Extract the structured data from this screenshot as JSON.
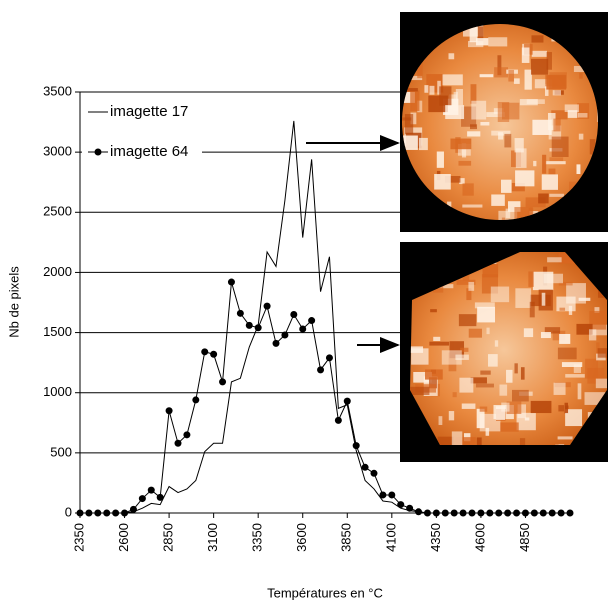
{
  "chart_data": {
    "type": "line",
    "x_label": "Températures en °C",
    "y_label": "Nb de pixels",
    "x": [
      2350,
      2400,
      2450,
      2500,
      2550,
      2600,
      2650,
      2700,
      2750,
      2800,
      2850,
      2900,
      2950,
      3000,
      3050,
      3100,
      3150,
      3200,
      3250,
      3300,
      3350,
      3400,
      3450,
      3500,
      3550,
      3600,
      3650,
      3700,
      3750,
      3800,
      3850,
      3900,
      3950,
      4000,
      4050,
      4100,
      4150,
      4200,
      4250,
      4300,
      4350,
      4400,
      4450,
      4500,
      4550,
      4600,
      4650,
      4700,
      4750,
      4800,
      4850,
      4900,
      4950,
      5000,
      5050,
      5100
    ],
    "series": [
      {
        "name": "imagette 17",
        "color": "#000000",
        "marker": false,
        "values": [
          0,
          0,
          0,
          0,
          0,
          0,
          10,
          40,
          80,
          70,
          220,
          170,
          200,
          270,
          510,
          580,
          580,
          1090,
          1120,
          1380,
          1560,
          2170,
          2050,
          2600,
          3260,
          2290,
          2940,
          1840,
          2130,
          870,
          900,
          520,
          270,
          200,
          100,
          90,
          40,
          20,
          10,
          0,
          0,
          0,
          0,
          0,
          0,
          0,
          0,
          0,
          0,
          0,
          0,
          0,
          0,
          0,
          0,
          0
        ]
      },
      {
        "name": "imagette 64",
        "color": "#000000",
        "marker": true,
        "values": [
          0,
          0,
          0,
          0,
          0,
          0,
          30,
          120,
          190,
          130,
          850,
          580,
          650,
          940,
          1340,
          1320,
          1090,
          1920,
          1660,
          1560,
          1540,
          1720,
          1410,
          1480,
          1650,
          1530,
          1600,
          1190,
          1290,
          770,
          930,
          560,
          380,
          330,
          150,
          150,
          70,
          40,
          10,
          0,
          0,
          0,
          0,
          0,
          0,
          0,
          0,
          0,
          0,
          0,
          0,
          0,
          0,
          0,
          0,
          0
        ]
      }
    ],
    "xlim": [
      2350,
      5100
    ],
    "xticks": [
      2350,
      2600,
      2850,
      3100,
      3350,
      3600,
      3850,
      4100,
      4350,
      4600,
      4850
    ],
    "ylim": [
      0,
      3500
    ],
    "yticks": [
      0,
      500,
      1000,
      1500,
      2000,
      2500,
      3000,
      3500
    ],
    "grid": true,
    "legend": "upper left"
  }
}
